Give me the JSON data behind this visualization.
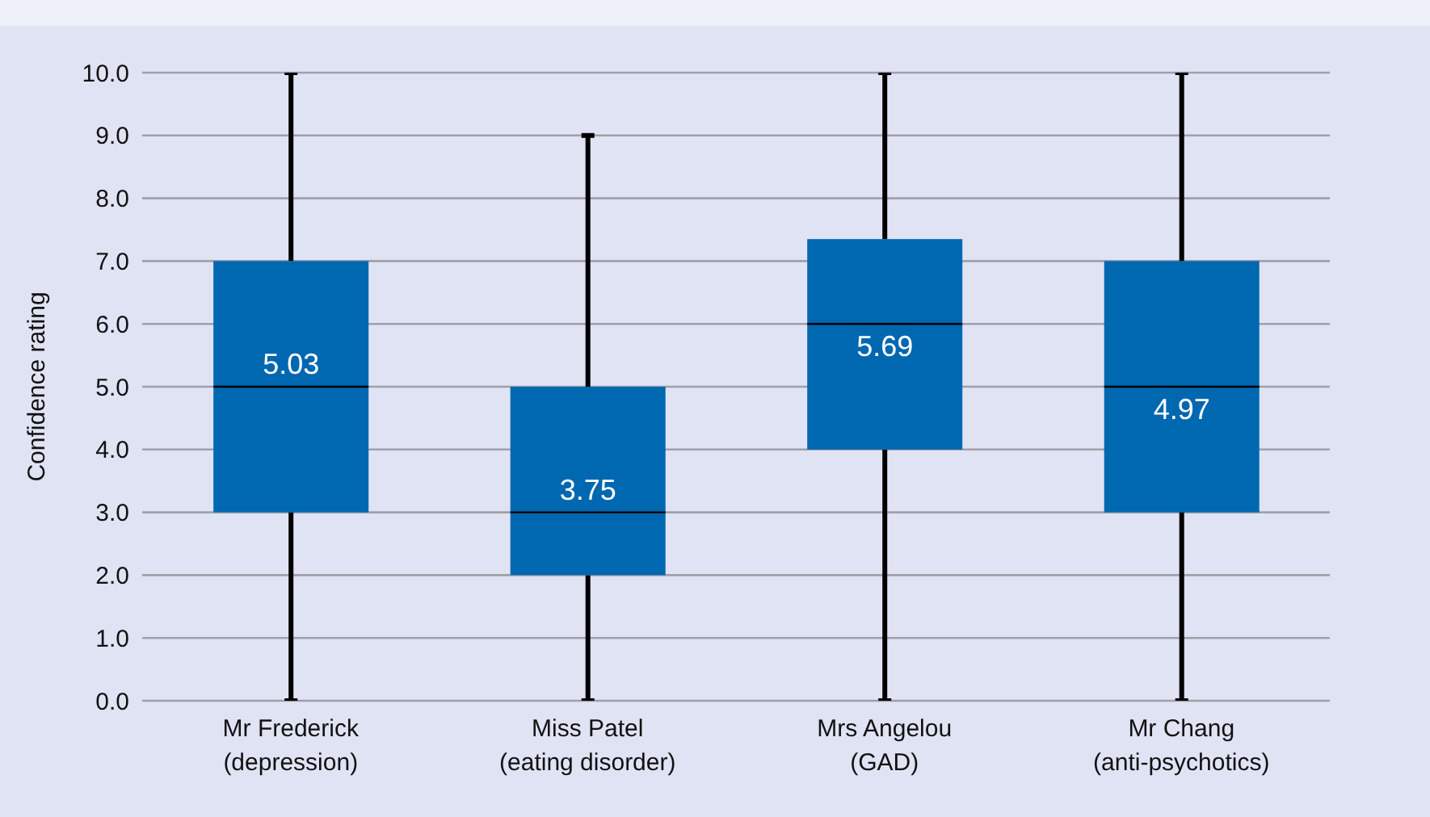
{
  "chart_data": {
    "type": "box",
    "ylabel": "Confidence rating",
    "categories": [
      "Mr Frederick\n(depression)",
      "Miss Patel\n(eating disorder)",
      "Mrs Angelou\n(GAD)",
      "Mr Chang\n(anti-psychotics)"
    ],
    "color": "#0067b1",
    "boxes": [
      {
        "low": 0,
        "q1": 3,
        "median": 5,
        "q3": 7,
        "high": 10
      },
      {
        "low": 0,
        "q1": 2,
        "median": 3,
        "q3": 5,
        "high": 9
      },
      {
        "low": 0,
        "q1": 4,
        "median": 6,
        "q3": 7.35,
        "high": 10
      },
      {
        "low": 0,
        "q1": 3,
        "median": 5,
        "q3": 7,
        "high": 10
      }
    ],
    "annotations": [
      "5.03",
      "3.75",
      "5.69",
      "4.97"
    ],
    "ylim": [
      0,
      10
    ],
    "yticks": [
      {
        "value": 0,
        "label": "0.0"
      },
      {
        "value": 1,
        "label": "1.0"
      },
      {
        "value": 2,
        "label": "2.0"
      },
      {
        "value": 3,
        "label": "3.0"
      },
      {
        "value": 4,
        "label": "4.0"
      },
      {
        "value": 5,
        "label": "5.0"
      },
      {
        "value": 6,
        "label": "6.0"
      },
      {
        "value": 7,
        "label": "7.0"
      },
      {
        "value": 8,
        "label": "8.0"
      },
      {
        "value": 9,
        "label": "9.0"
      },
      {
        "value": 10,
        "label": "10.0"
      }
    ],
    "grid": "y"
  }
}
